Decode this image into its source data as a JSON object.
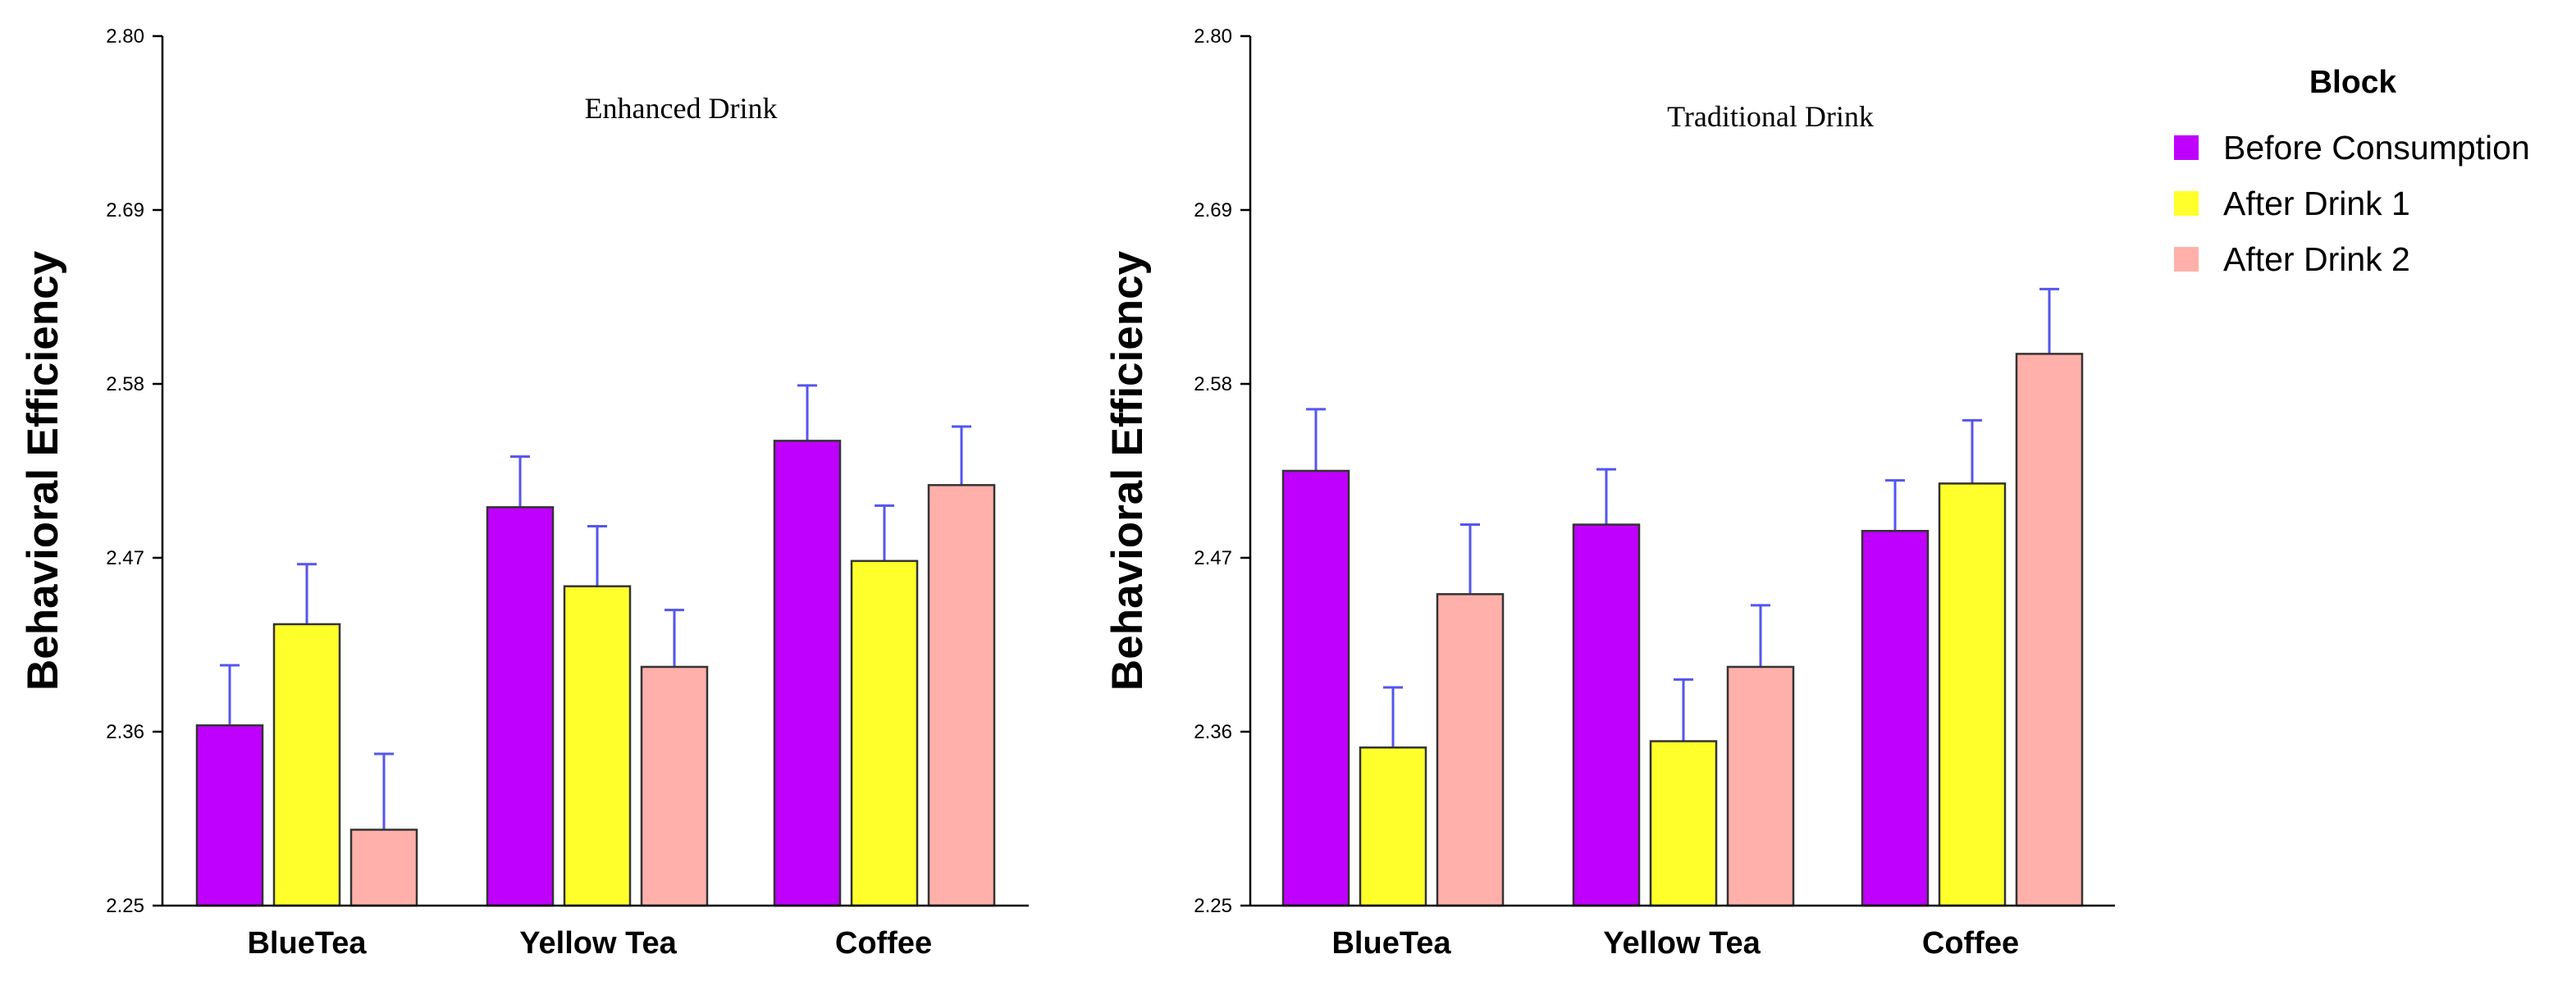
{
  "colors": {
    "before": "#BF00FF",
    "after1": "#FFFF2B",
    "after2": "#FFB0AA",
    "error_bar": "#5555EE",
    "axis": "#000000",
    "bar_outline": "#333333"
  },
  "legend": {
    "title": "Block",
    "items": [
      "Before Consumption",
      "After Drink 1",
      "After Drink 2"
    ]
  },
  "chart_data": [
    {
      "type": "bar",
      "title": "Enhanced Drink",
      "xlabel": "",
      "ylabel": "Behavioral Efficiency",
      "ylim": [
        2.25,
        2.8
      ],
      "yticks": [
        "2.25",
        "2.36",
        "2.47",
        "2.58",
        "2.69",
        "2.80"
      ],
      "grid": false,
      "categories": [
        "BlueTea",
        "Yellow Tea",
        "Coffee"
      ],
      "series": [
        {
          "name": "Before Consumption",
          "values": [
            2.364,
            2.502,
            2.544
          ],
          "errors": [
            0.038,
            0.032,
            0.035
          ]
        },
        {
          "name": "After Drink 1",
          "values": [
            2.428,
            2.452,
            2.468
          ],
          "errors": [
            0.038,
            0.038,
            0.035
          ]
        },
        {
          "name": "After Drink 2",
          "values": [
            2.298,
            2.401,
            2.516
          ],
          "errors": [
            0.048,
            0.036,
            0.037
          ]
        }
      ]
    },
    {
      "type": "bar",
      "title": "Traditional Drink",
      "xlabel": "",
      "ylabel": "Behavioral Efficiency",
      "ylim": [
        2.25,
        2.8
      ],
      "yticks": [
        "2.25",
        "2.36",
        "2.47",
        "2.58",
        "2.69",
        "2.80"
      ],
      "grid": false,
      "categories": [
        "BlueTea",
        "Yellow Tea",
        "Coffee"
      ],
      "series": [
        {
          "name": "Before Consumption",
          "values": [
            2.525,
            2.491,
            2.487
          ],
          "errors": [
            0.039,
            0.035,
            0.032
          ]
        },
        {
          "name": "After Drink 1",
          "values": [
            2.35,
            2.354,
            2.517
          ],
          "errors": [
            0.038,
            0.039,
            0.04
          ]
        },
        {
          "name": "After Drink 2",
          "values": [
            2.447,
            2.401,
            2.599
          ],
          "errors": [
            0.044,
            0.039,
            0.041
          ]
        }
      ]
    }
  ]
}
